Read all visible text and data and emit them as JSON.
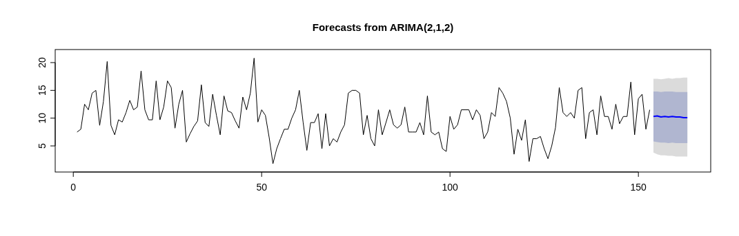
{
  "chart_data": {
    "type": "line",
    "title": "Forecasts from ARIMA(2,1,2)",
    "xlim": [
      -4.8,
      169.2
    ],
    "ylim": [
      0.3,
      22.35
    ],
    "xticks": [
      0,
      50,
      100,
      150
    ],
    "yticks": [
      5,
      10,
      15,
      20
    ],
    "series": [
      {
        "color": "#000000",
        "x": [
          1,
          2,
          3,
          4,
          5,
          6,
          7,
          8,
          9,
          10,
          11,
          12,
          13,
          14,
          15,
          16,
          17,
          18,
          19,
          20,
          21,
          22,
          23,
          24,
          25,
          26,
          27,
          28,
          29,
          30,
          31,
          32,
          33,
          34,
          35,
          36,
          37,
          38,
          39,
          40,
          41,
          42,
          43,
          44,
          45,
          46,
          47,
          48,
          49,
          50,
          51,
          52,
          53,
          54,
          55,
          56,
          57,
          58,
          59,
          60,
          61,
          62,
          63,
          64,
          65,
          66,
          67,
          68,
          69,
          70,
          71,
          72,
          73,
          74,
          75,
          76,
          77,
          78,
          79,
          80,
          81,
          82,
          83,
          84,
          85,
          86,
          87,
          88,
          89,
          90,
          91,
          92,
          93,
          94,
          95,
          96,
          97,
          98,
          99,
          100,
          101,
          102,
          103,
          104,
          105,
          106,
          107,
          108,
          109,
          110,
          111,
          112,
          113,
          114,
          115,
          116,
          117,
          118,
          119,
          120,
          121,
          122,
          123,
          124,
          125,
          126,
          127,
          128,
          129,
          130,
          131,
          132,
          133,
          134,
          135,
          136,
          137,
          138,
          139,
          140,
          141,
          142,
          143,
          144,
          145,
          146,
          147,
          148,
          149,
          150,
          151,
          152,
          153
        ],
        "values": [
          7.5,
          8,
          12.5,
          11.5,
          14.5,
          15,
          8.7,
          13,
          20.2,
          8.7,
          7,
          9.7,
          9.3,
          11,
          13.2,
          11.5,
          12,
          18.5,
          11.5,
          9.7,
          9.7,
          16.7,
          9.7,
          12,
          16.7,
          15.5,
          8.2,
          12.5,
          15,
          5.7,
          7.2,
          8.5,
          9.5,
          16,
          9.2,
          8.5,
          14.3,
          10.5,
          7,
          14,
          11.3,
          11,
          9.5,
          8.2,
          13.8,
          11.5,
          14.5,
          20.8,
          9.3,
          11.5,
          10.5,
          6.5,
          1.8,
          4.5,
          6.3,
          8,
          8,
          10,
          11.5,
          15,
          9.3,
          4.2,
          9.2,
          9.2,
          10.8,
          4.5,
          10.8,
          5,
          6.3,
          5.7,
          7.5,
          8.8,
          14.5,
          15,
          15,
          14.5,
          7,
          10.5,
          6.3,
          5,
          11.5,
          7,
          9.2,
          11.5,
          8.8,
          8.2,
          8.8,
          12,
          7.5,
          7.5,
          7.5,
          9.2,
          7,
          14,
          7.5,
          7,
          7.5,
          4.5,
          4,
          10.3,
          8,
          8.8,
          11.5,
          11.5,
          11.5,
          9.7,
          11.5,
          10.5,
          6.3,
          7.5,
          11,
          10.3,
          15.5,
          14.5,
          13,
          10,
          3.5,
          8,
          6,
          9.7,
          2.2,
          6.3,
          6.3,
          6.7,
          4.5,
          2.7,
          5,
          8.3,
          15.5,
          11,
          10.3,
          11,
          10,
          15,
          15.5,
          6.3,
          11,
          11.5,
          7,
          14,
          10.3,
          10.3,
          8,
          12.5,
          9,
          10.3,
          10.3,
          16.5,
          7,
          13.5,
          14.3,
          8,
          11.5
        ]
      },
      {
        "color": "#dbdbdb",
        "type": "area",
        "x": [
          154,
          155,
          156,
          157,
          158,
          159,
          160,
          161,
          162,
          163
        ],
        "values": [
          null,
          null,
          null,
          null,
          null,
          null,
          null,
          null,
          null,
          null
        ],
        "lower": [
          3.8,
          3.5,
          3.3,
          3.3,
          3.2,
          3.2,
          3.1,
          3.1,
          3.1,
          3.1
        ],
        "upper": [
          17.1,
          17.1,
          17.0,
          17.1,
          17.2,
          17.1,
          17.2,
          17.2,
          17.3,
          17.3
        ]
      },
      {
        "color": "#b0b6d0",
        "type": "area",
        "x": [
          154,
          155,
          156,
          157,
          158,
          159,
          160,
          161,
          162,
          163
        ],
        "values": [
          null,
          null,
          null,
          null,
          null,
          null,
          null,
          null,
          null,
          null
        ],
        "lower": [
          5.8,
          5.7,
          5.6,
          5.6,
          5.5,
          5.6,
          5.5,
          5.5,
          5.5,
          5.5
        ],
        "upper": [
          14.8,
          14.8,
          14.7,
          14.8,
          14.8,
          14.8,
          14.7,
          14.7,
          14.7,
          14.7
        ]
      },
      {
        "color": "#0000ff",
        "x": [
          154,
          155,
          156,
          157,
          158,
          159,
          160,
          161,
          162,
          163
        ],
        "values": [
          10.3,
          10.4,
          10.2,
          10.3,
          10.2,
          10.3,
          10.2,
          10.2,
          10.1,
          10.1
        ]
      }
    ]
  }
}
